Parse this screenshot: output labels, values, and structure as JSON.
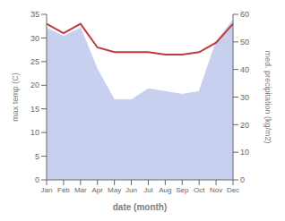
{
  "chart_data": {
    "type": "line",
    "x_label": "date (month)",
    "y_label": "max temp (C)",
    "y2_label": "med. precipitation (kg/m2)",
    "categories": [
      "Jan",
      "Feb",
      "Mar",
      "Apr",
      "May",
      "Jun",
      "Jul",
      "Aug",
      "Sep",
      "Oct",
      "Nov",
      "Dec"
    ],
    "series": [
      {
        "type": "area",
        "axis": "y2",
        "color": "#c8d0f0",
        "values": [
          55,
          52,
          55,
          40,
          29,
          29,
          33,
          32,
          31,
          32,
          50,
          58
        ]
      },
      {
        "type": "line",
        "axis": "y",
        "color": "#c0393b",
        "values": [
          33,
          31,
          33,
          28,
          27,
          27,
          27,
          26.5,
          26.5,
          27,
          29,
          33
        ]
      }
    ],
    "ylim": [
      0,
      35
    ],
    "yticks": [
      0,
      5,
      10,
      15,
      20,
      25,
      30,
      35
    ],
    "y2lim": [
      0,
      60
    ],
    "y2ticks": [
      0,
      10,
      20,
      30,
      40,
      50,
      60
    ],
    "grid": false
  }
}
